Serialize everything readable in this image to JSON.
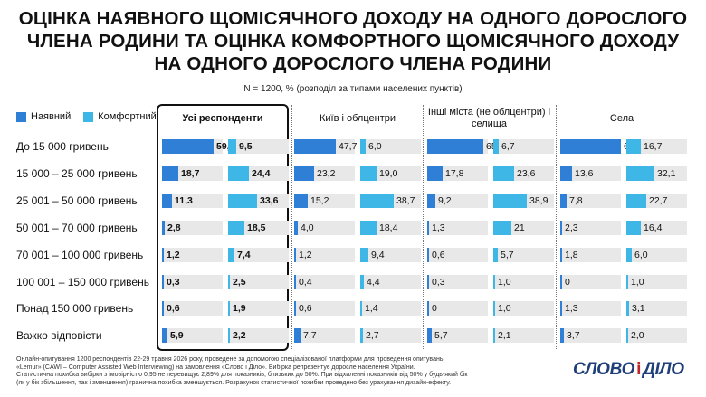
{
  "title_lines": [
    "ОЦІНКА НАЯВНОГО ЩОМІСЯЧНОГО ДОХОДУ НА ОДНОГО ДОРОСЛОГО",
    "ЧЛЕНА РОДИНИ ТА  ОЦІНКА КОМФОРТНОГО ЩОМІСЯЧНОГО ДОХОДУ",
    "НА ОДНОГО ДОРОСЛОГО ЧЛЕНА РОДИНИ"
  ],
  "subtitle": "N = 1200, % (розподіл за типами населених пунктів)",
  "legend": {
    "current": "Наявний",
    "comfort": "Комфортний"
  },
  "colors": {
    "current": "#2f7fd6",
    "comfort": "#3fb7e6",
    "track": "#e8e8e8"
  },
  "chart_data": {
    "type": "bar",
    "categories": [
      "До 15 000 гривень",
      "15 000 – 25 000 гривень",
      "25 001 – 50 000 гривень",
      "50 001 – 70 000 гривень",
      "70 001 – 100 000 гривень",
      "100 001 – 150 000 гривень",
      "Понад 150 000 гривень",
      "Важко відповісти"
    ],
    "groups": [
      {
        "title": "Усі респонденти",
        "current": [
          "59,2",
          "18,7",
          "11,3",
          "2,8",
          "1,2",
          "0,3",
          "0,6",
          "5,9"
        ],
        "comfort": [
          "9,5",
          "24,4",
          "33,6",
          "18,5",
          "7,4",
          "2,5",
          "1,9",
          "2,2"
        ]
      },
      {
        "title": "Київ і облцентри",
        "current": [
          "47,7",
          "23,2",
          "15,2",
          "4,0",
          "1,2",
          "0,4",
          "0,6",
          "7,7"
        ],
        "comfort": [
          "6,0",
          "19,0",
          "38,7",
          "18,4",
          "9,4",
          "4,4",
          "1,4",
          "2,7"
        ]
      },
      {
        "title": "Інші міста (не облцентри) і селища",
        "current": [
          "65,1",
          "17,8",
          "9,2",
          "1,3",
          "0,6",
          "0,3",
          "0",
          "5,7"
        ],
        "comfort": [
          "6,7",
          "23,6",
          "38,9",
          "21",
          "5,7",
          "1,0",
          "1,0",
          "2,1"
        ]
      },
      {
        "title": "Села",
        "current": [
          "69,5",
          "13,6",
          "7,8",
          "2,3",
          "1,8",
          "0",
          "1,3",
          "3,7"
        ],
        "comfort": [
          "16,7",
          "32,1",
          "22,7",
          "16,4",
          "6,0",
          "1,0",
          "3,1",
          "2,0"
        ]
      }
    ],
    "xlim": [
      0,
      70
    ]
  },
  "footnote_lines": [
    "Онлайн-опитування 1200 респондентів 22-29 травня 2026 року, проведене за допомогою спеціалізованої платформи для проведення опитувань",
    "«Lemur» (CAWI – Computer Assisted Web Interviewing) на замовлення «Слово і Діло». Вибірка репрезентує доросле населення України.",
    "Статистична похибка вибірки з імовірністю 0,95 не перевищує 2,89% для показників, близьких до 50%. При відхиленні показників від 50% у будь-який бік",
    "(як у бік збільшення, так і зменшення) гранична похибка зменшується. Розрахунок статистичної похибки проведено без урахування дизайн-ефекту."
  ],
  "logo": {
    "left": "СЛОВО",
    "amp": "і",
    "right": "ДІЛО"
  }
}
